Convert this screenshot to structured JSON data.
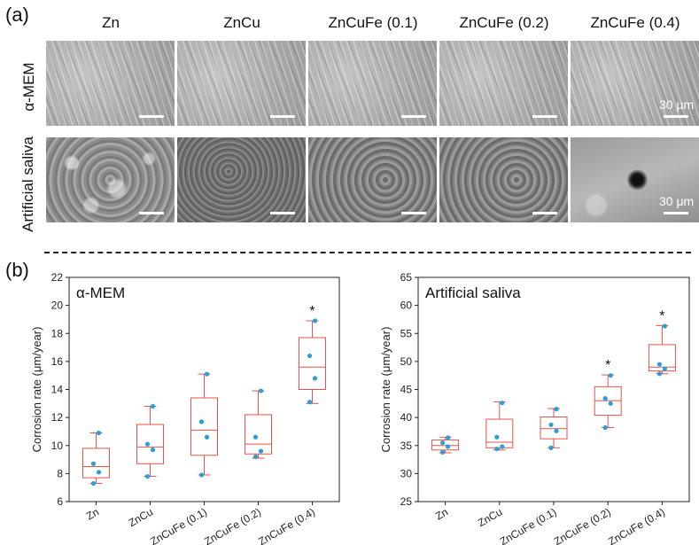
{
  "panel_a": {
    "label": "(a)",
    "columns": [
      "Zn",
      "ZnCu",
      "ZnCuFe (0.1)",
      "ZnCuFe (0.2)",
      "ZnCuFe (0.4)"
    ],
    "rows": [
      "α-MEM",
      "Artificial saliva"
    ],
    "scale_bar_text": "30 μm"
  },
  "panel_b": {
    "label": "(b)"
  },
  "chart_data": [
    {
      "type": "box",
      "title": "α-MEM",
      "ylabel": "Corrosion rate (μm/year)",
      "ylim": [
        6,
        22
      ],
      "yticks": [
        6,
        8,
        10,
        12,
        14,
        16,
        18,
        20,
        22
      ],
      "categories": [
        "Zn",
        "ZnCu",
        "ZnCuFe (0.1)",
        "ZnCuFe (0.2)",
        "ZnCuFe (0.4)"
      ],
      "boxes": [
        {
          "min": 7.3,
          "q1": 7.7,
          "median": 8.5,
          "q3": 9.8,
          "max": 10.9,
          "points": [
            10.9,
            8.7,
            8.1,
            7.3
          ],
          "star": ""
        },
        {
          "min": 7.8,
          "q1": 8.7,
          "median": 9.9,
          "q3": 11.5,
          "max": 12.8,
          "points": [
            12.8,
            10.1,
            9.7,
            7.8
          ],
          "star": ""
        },
        {
          "min": 7.9,
          "q1": 9.3,
          "median": 11.1,
          "q3": 13.4,
          "max": 15.1,
          "points": [
            15.1,
            11.7,
            10.6,
            7.9
          ],
          "star": ""
        },
        {
          "min": 9.1,
          "q1": 9.4,
          "median": 10.1,
          "q3": 12.2,
          "max": 13.9,
          "points": [
            13.9,
            10.6,
            9.6,
            9.2
          ],
          "star": ""
        },
        {
          "min": 13.0,
          "q1": 14.0,
          "median": 15.6,
          "q3": 17.7,
          "max": 18.9,
          "points": [
            18.9,
            16.4,
            14.8,
            13.1
          ],
          "star": "*"
        }
      ],
      "colors": {
        "box": "#e8524a",
        "point": "#2a9fd8"
      }
    },
    {
      "type": "box",
      "title": "Artificial saliva",
      "ylabel": "Corrosion rate (μm/year)",
      "ylim": [
        25,
        65
      ],
      "yticks": [
        25,
        30,
        35,
        40,
        45,
        50,
        55,
        60,
        65
      ],
      "categories": [
        "Zn",
        "ZnCu",
        "ZnCuFe (0.1)",
        "ZnCuFe (0.2)",
        "ZnCuFe (0.4)"
      ],
      "boxes": [
        {
          "min": 33.7,
          "q1": 34.2,
          "median": 35.0,
          "q3": 36.0,
          "max": 36.5,
          "points": [
            36.4,
            35.5,
            34.8,
            33.8
          ],
          "star": ""
        },
        {
          "min": 34.2,
          "q1": 34.6,
          "median": 35.6,
          "q3": 39.7,
          "max": 42.8,
          "points": [
            42.6,
            36.5,
            34.8,
            34.4
          ],
          "star": ""
        },
        {
          "min": 34.6,
          "q1": 36.2,
          "median": 38.0,
          "q3": 40.1,
          "max": 41.6,
          "points": [
            41.5,
            38.7,
            37.6,
            34.6
          ],
          "star": ""
        },
        {
          "min": 38.2,
          "q1": 40.4,
          "median": 43.0,
          "q3": 45.5,
          "max": 47.6,
          "points": [
            47.5,
            43.4,
            42.5,
            38.2
          ],
          "star": "*"
        },
        {
          "min": 47.8,
          "q1": 48.3,
          "median": 49.0,
          "q3": 53.0,
          "max": 56.4,
          "points": [
            56.3,
            49.5,
            48.7,
            47.8
          ],
          "star": "*"
        }
      ],
      "colors": {
        "box": "#e8524a",
        "point": "#2a9fd8"
      }
    }
  ]
}
